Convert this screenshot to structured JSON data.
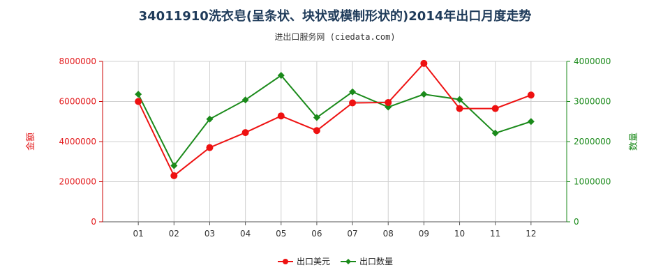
{
  "chart_data": {
    "type": "line",
    "title": "34011910洗衣皂(呈条状、块状或模制形状的)2014年出口月度走势",
    "subtitle": "进出口服务网 (ciedata.com)",
    "categories": [
      "01",
      "02",
      "03",
      "04",
      "05",
      "06",
      "07",
      "08",
      "09",
      "10",
      "11",
      "12"
    ],
    "y_left": {
      "label": "金额",
      "ylim": [
        0,
        8000000
      ],
      "ticks": [
        "0",
        "2000000",
        "4000000",
        "6000000",
        "8000000"
      ],
      "color": "#e31a1c"
    },
    "y_right": {
      "label": "数量",
      "ylim": [
        0,
        4000000
      ],
      "ticks": [
        "0",
        "1000000",
        "2000000",
        "3000000",
        "4000000"
      ],
      "color": "#1a8a1a"
    },
    "series": [
      {
        "name": "出口美元",
        "axis": "left",
        "color": "#ee1111",
        "values": [
          6000000,
          2300000,
          3700000,
          4450000,
          5280000,
          4550000,
          5930000,
          5950000,
          7900000,
          5650000,
          5650000,
          6320000
        ]
      },
      {
        "name": "出口数量",
        "axis": "right",
        "color": "#1a8a1a",
        "values": [
          3180000,
          1400000,
          2560000,
          3040000,
          3650000,
          2600000,
          3240000,
          2860000,
          3180000,
          3050000,
          2210000,
          2500000
        ]
      }
    ],
    "grid": true,
    "legend": "bottom-center"
  }
}
